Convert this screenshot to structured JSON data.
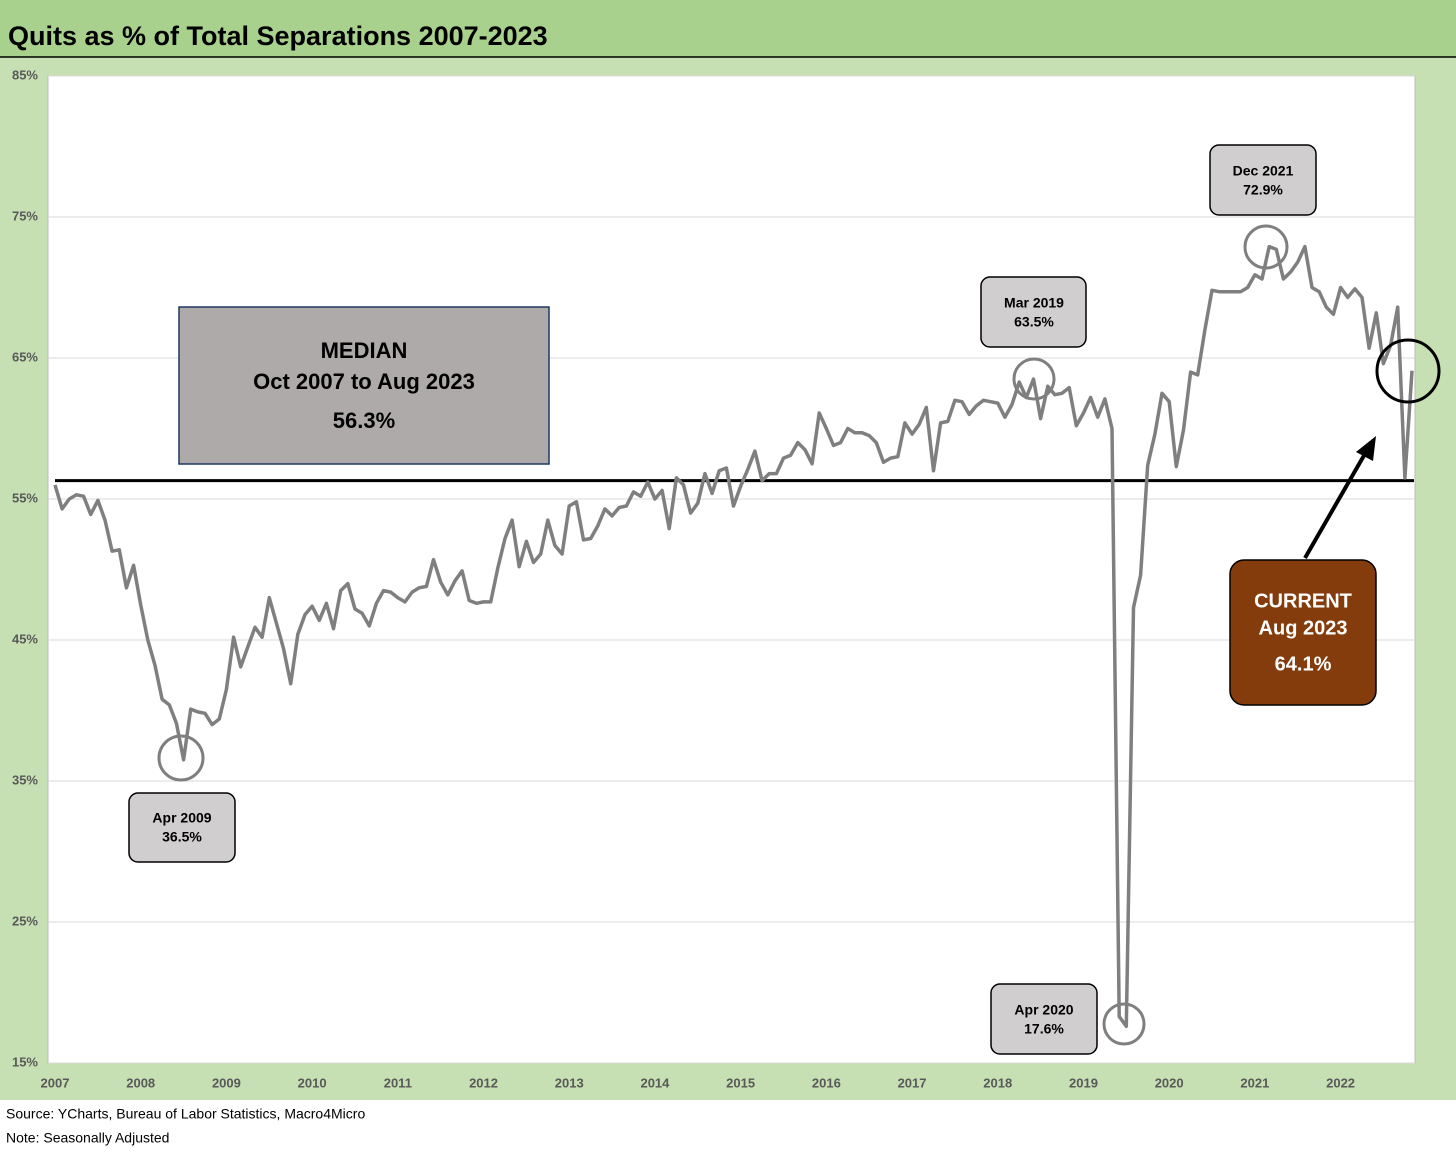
{
  "chart_data": {
    "type": "line",
    "title": "Quits as % of Total Separations 2007-2023",
    "categories": [
      "2007",
      null,
      null,
      null,
      null,
      null,
      null,
      null,
      null,
      null,
      null,
      null,
      "2008",
      null,
      null,
      null,
      null,
      null,
      null,
      null,
      null,
      null,
      null,
      null,
      "2009",
      null,
      null,
      null,
      null,
      null,
      null,
      null,
      null,
      null,
      null,
      null,
      "2010",
      null,
      null,
      null,
      null,
      null,
      null,
      null,
      null,
      null,
      null,
      null,
      "2011",
      null,
      null,
      null,
      null,
      null,
      null,
      null,
      null,
      null,
      null,
      null,
      "2012",
      null,
      null,
      null,
      null,
      null,
      null,
      null,
      null,
      null,
      null,
      null,
      "2013",
      null,
      null,
      null,
      null,
      null,
      null,
      null,
      null,
      null,
      null,
      null,
      "2014",
      null,
      null,
      null,
      null,
      null,
      null,
      null,
      null,
      null,
      null,
      null,
      "2015",
      null,
      null,
      null,
      null,
      null,
      null,
      null,
      null,
      null,
      null,
      null,
      "2016",
      null,
      null,
      null,
      null,
      null,
      null,
      null,
      null,
      null,
      null,
      null,
      "2017",
      null,
      null,
      null,
      null,
      null,
      null,
      null,
      null,
      null,
      null,
      null,
      "2018",
      null,
      null,
      null,
      null,
      null,
      null,
      null,
      null,
      null,
      null,
      null,
      "2019",
      null,
      null,
      null,
      null,
      null,
      null,
      null,
      null,
      null,
      null,
      null,
      "2020",
      null,
      null,
      null,
      null,
      null,
      null,
      null,
      null,
      null,
      null,
      null,
      "2021",
      null,
      null,
      null,
      null,
      null,
      null,
      null,
      null,
      null,
      null,
      null,
      "2022",
      null,
      null,
      null,
      null,
      null,
      null,
      null,
      null,
      null,
      null
    ],
    "series": [
      {
        "name": "Quits as % of Total Separations",
        "color": "#7f7f7f",
        "values": [
          56.0,
          54.3,
          55.0,
          55.3,
          55.2,
          53.9,
          54.9,
          53.5,
          51.3,
          51.4,
          48.7,
          50.3,
          47.5,
          45.0,
          43.2,
          40.8,
          40.4,
          39.1,
          36.5,
          40.1,
          39.9,
          39.8,
          39.0,
          39.4,
          41.5,
          45.2,
          43.1,
          44.5,
          45.9,
          45.2,
          48.0,
          46.2,
          44.4,
          41.9,
          45.4,
          46.8,
          47.4,
          46.4,
          47.6,
          45.8,
          48.5,
          49.0,
          47.2,
          46.9,
          46.0,
          47.6,
          48.5,
          48.4,
          48.0,
          47.7,
          48.4,
          48.7,
          48.8,
          50.7,
          49.1,
          48.2,
          49.2,
          49.9,
          47.8,
          47.6,
          47.7,
          47.7,
          50.1,
          52.2,
          53.5,
          50.2,
          52.0,
          50.5,
          51.1,
          53.5,
          51.7,
          51.1,
          54.5,
          54.8,
          52.1,
          52.2,
          53.1,
          54.3,
          53.8,
          54.4,
          54.5,
          55.5,
          55.2,
          56.2,
          55.0,
          55.6,
          52.9,
          56.5,
          56.0,
          54.0,
          54.7,
          56.8,
          55.4,
          57.0,
          57.2,
          54.5,
          55.9,
          57.1,
          58.4,
          56.3,
          56.8,
          56.8,
          57.9,
          58.1,
          59.0,
          58.5,
          57.5,
          61.1,
          60.0,
          58.8,
          59.0,
          60.0,
          59.7,
          59.7,
          59.5,
          59.0,
          57.6,
          57.9,
          58.0,
          60.4,
          59.6,
          60.3,
          61.5,
          57.0,
          60.4,
          60.5,
          62.0,
          61.9,
          61.0,
          61.6,
          62.0,
          61.9,
          61.8,
          60.8,
          61.7,
          63.3,
          62.2,
          63.5,
          60.7,
          63.0,
          62.4,
          62.5,
          62.9,
          60.2,
          61.1,
          62.2,
          60.8,
          62.1,
          60.0,
          18.3,
          17.6,
          47.3,
          49.6,
          57.4,
          59.6,
          62.5,
          61.9,
          57.3,
          59.9,
          64.0,
          63.8,
          67.0,
          69.8,
          69.7,
          69.7,
          69.7,
          69.7,
          70.0,
          70.9,
          70.6,
          72.9,
          72.7,
          70.6,
          71.1,
          71.8,
          72.9,
          70.0,
          69.7,
          68.6,
          68.1,
          70.0,
          69.3,
          69.9,
          69.3,
          65.7,
          68.2,
          64.6,
          65.9,
          68.6,
          56.5,
          64.1
        ]
      }
    ],
    "ylim": [
      15,
      85
    ],
    "yticks": [
      {
        "value": 15,
        "label": "15%"
      },
      {
        "value": 25,
        "label": "25%"
      },
      {
        "value": 35,
        "label": "35%"
      },
      {
        "value": 45,
        "label": "45%"
      },
      {
        "value": 55,
        "label": "55%"
      },
      {
        "value": 65,
        "label": "65%"
      },
      {
        "value": 75,
        "label": "75%"
      },
      {
        "value": 85,
        "label": "85%"
      }
    ],
    "grid": true,
    "median": {
      "value": 56.3,
      "title": "MEDIAN",
      "period": "Oct 2007 to Aug 2023",
      "label": "56.3%",
      "color": "#000000"
    },
    "annotations": [
      {
        "date": "Apr 2009",
        "value": "36.5%"
      },
      {
        "date": "Mar 2019",
        "value": "63.5%"
      },
      {
        "date": "Dec 2021",
        "value": "72.9%"
      },
      {
        "date": "Apr 2020",
        "value": "17.6%"
      }
    ],
    "current": {
      "title": "CURRENT",
      "date": "Aug 2023",
      "value": "64.1%"
    },
    "source": "Source: YCharts, Bureau of Labor Statistics, Macro4Micro",
    "note": "Note: Seasonally Adjusted"
  }
}
